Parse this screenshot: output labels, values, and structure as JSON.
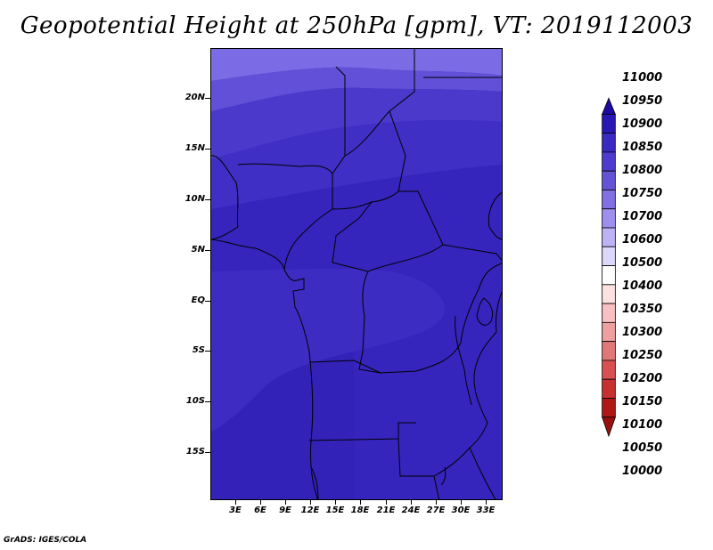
{
  "title": "Geopotential Height at 250hPa [gpm], VT: 2019112003",
  "footer": "GrADS: IGES/COLA",
  "map": {
    "lat_labels": [
      "20N",
      "15N",
      "10N",
      "5N",
      "EQ",
      "5S",
      "10S",
      "15S"
    ],
    "lon_labels": [
      "3E",
      "6E",
      "9E",
      "12E",
      "15E",
      "18E",
      "21E",
      "24E",
      "27E",
      "30E",
      "33E"
    ]
  },
  "colorbar": {
    "labels": [
      "11000",
      "10950",
      "10900",
      "10850",
      "10800",
      "10750",
      "10700",
      "10600",
      "10500",
      "10400",
      "10350",
      "10300",
      "10250",
      "10200",
      "10150",
      "10100",
      "10050",
      "10000"
    ],
    "colors": [
      "#1e0aa0",
      "#2818b4",
      "#3a2ac3",
      "#4d3ccd",
      "#6553d7",
      "#8070e3",
      "#9e8fee",
      "#bcb2f6",
      "#dcd8fc",
      "#ffffff",
      "#fde0e0",
      "#f8c0c0",
      "#eea0a0",
      "#e07878",
      "#d85050",
      "#c83030",
      "#b01818",
      "#9a1010"
    ]
  },
  "palette": {
    "top": "#5a48d4",
    "mid": "#3f2ec6",
    "main": "#3525bd",
    "deep": "#2f20b3",
    "land_line": "#000000"
  }
}
